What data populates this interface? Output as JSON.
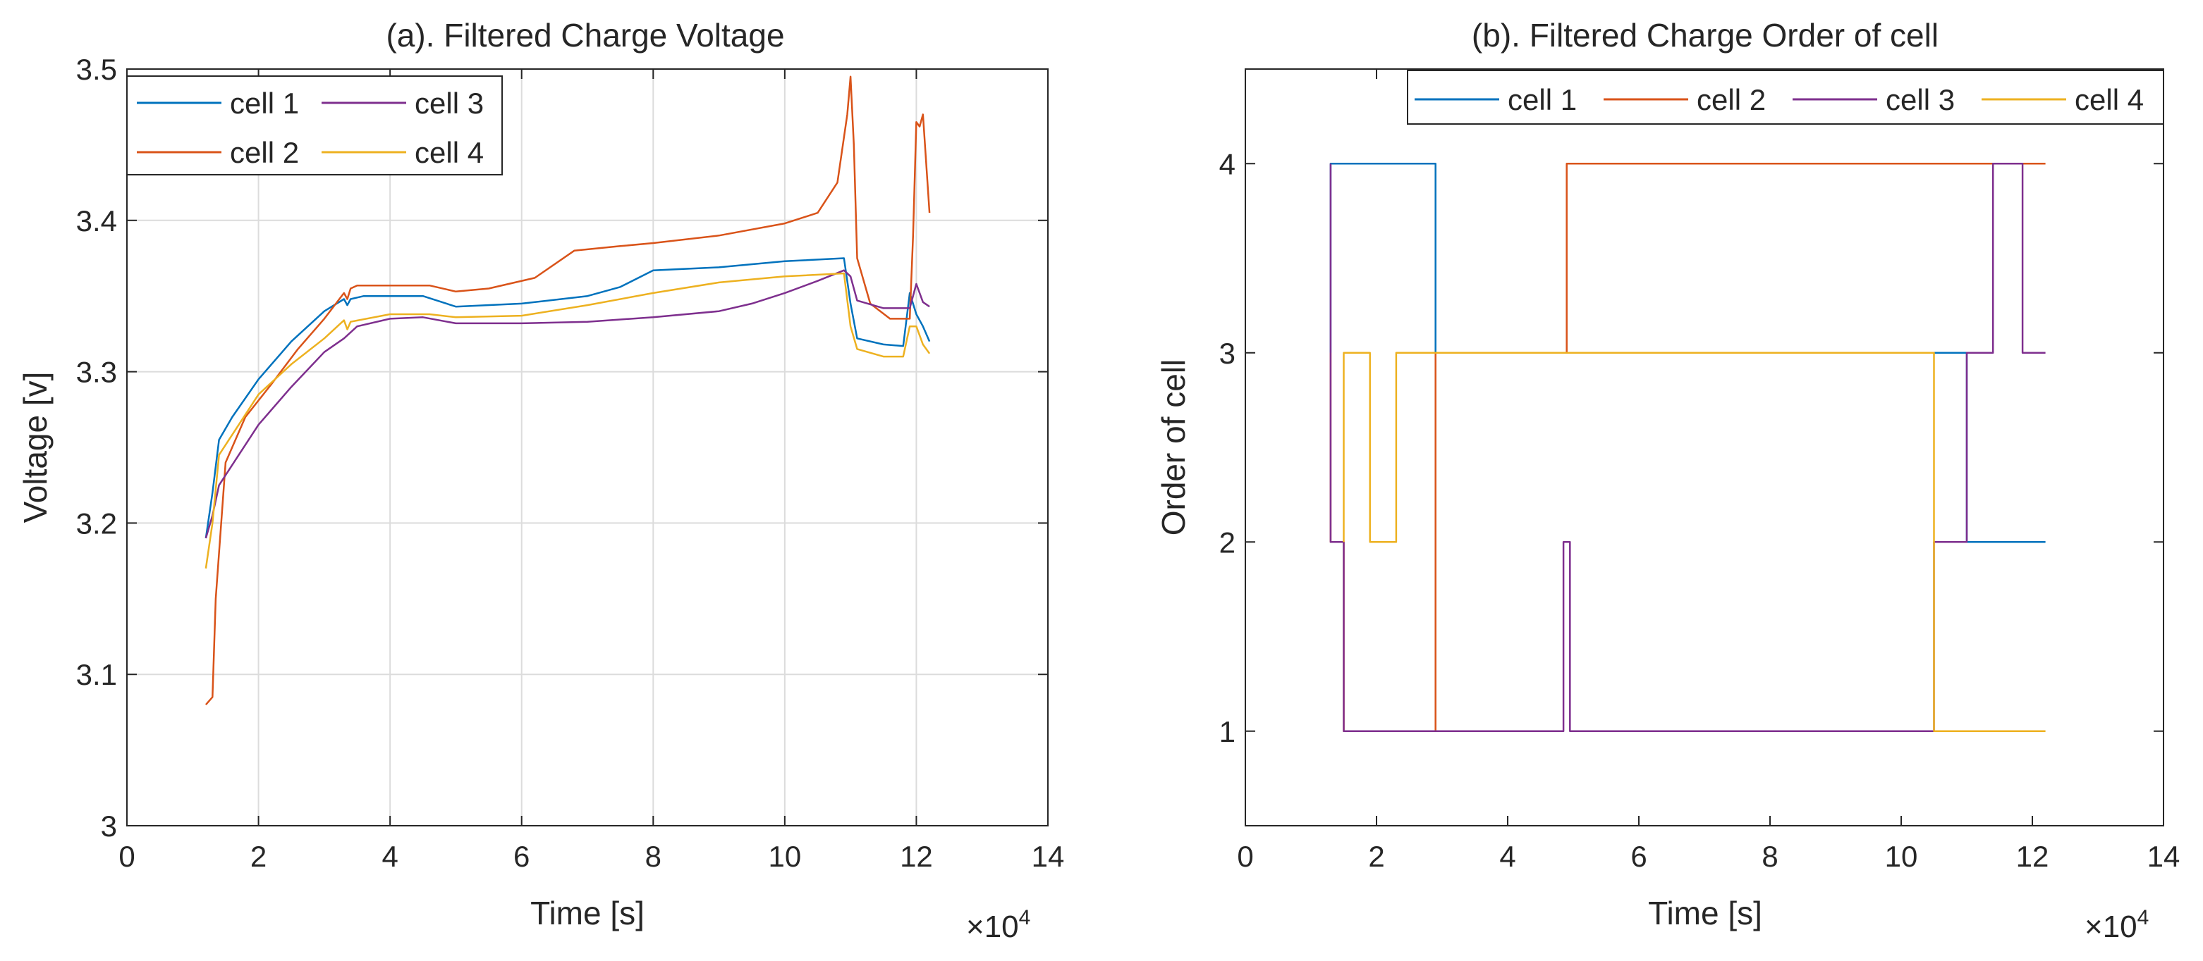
{
  "figure": {
    "exponent_label": "×10",
    "exponent_power": "4"
  },
  "chart_data": [
    {
      "type": "line",
      "title": "(a). Filtered Charge Voltage",
      "xlabel": "Time [s]",
      "ylabel": "Voltage [v]",
      "xlim": [
        0,
        14
      ],
      "ylim": [
        3.0,
        3.5
      ],
      "xticks": [
        0,
        2,
        4,
        6,
        8,
        10,
        12,
        14
      ],
      "yticks": [
        3.0,
        3.1,
        3.2,
        3.3,
        3.4,
        3.5
      ],
      "xtick_labels": [
        "0",
        "2",
        "4",
        "6",
        "8",
        "10",
        "12",
        "14"
      ],
      "ytick_labels": [
        "3",
        "3.1",
        "3.2",
        "3.3",
        "3.4",
        "3.5"
      ],
      "x_multiplier": "×10^4",
      "grid": true,
      "legend_position": "top-left",
      "legend_layout": [
        [
          "cell 1",
          "cell 3"
        ],
        [
          "cell 2",
          "cell 4"
        ]
      ],
      "series": [
        {
          "name": "cell 1",
          "color": "#0072BD",
          "x": [
            1.2,
            1.3,
            1.4,
            1.6,
            2.0,
            2.5,
            3.0,
            3.3,
            3.35,
            3.4,
            3.6,
            4.0,
            4.5,
            5.0,
            6.0,
            7.0,
            7.5,
            8.0,
            9.0,
            10.0,
            10.9,
            11.0,
            11.1,
            11.5,
            11.8,
            11.9,
            12.0,
            12.1,
            12.2
          ],
          "y": [
            3.19,
            3.22,
            3.255,
            3.27,
            3.295,
            3.32,
            3.34,
            3.348,
            3.344,
            3.348,
            3.35,
            3.35,
            3.35,
            3.343,
            3.345,
            3.35,
            3.356,
            3.367,
            3.369,
            3.373,
            3.375,
            3.345,
            3.322,
            3.318,
            3.317,
            3.352,
            3.338,
            3.33,
            3.32
          ]
        },
        {
          "name": "cell 2",
          "color": "#D95319",
          "x": [
            1.2,
            1.3,
            1.35,
            1.5,
            1.8,
            2.2,
            2.6,
            3.0,
            3.3,
            3.35,
            3.4,
            3.5,
            4.0,
            4.6,
            5.0,
            5.5,
            6.2,
            6.8,
            7.5,
            8.0,
            9.0,
            10.0,
            10.5,
            10.8,
            10.95,
            11.0,
            11.05,
            11.1,
            11.3,
            11.6,
            11.9,
            11.95,
            12.0,
            12.05,
            12.1,
            12.2
          ],
          "y": [
            3.08,
            3.085,
            3.15,
            3.24,
            3.27,
            3.292,
            3.315,
            3.335,
            3.352,
            3.348,
            3.355,
            3.357,
            3.357,
            3.357,
            3.353,
            3.355,
            3.362,
            3.38,
            3.383,
            3.385,
            3.39,
            3.398,
            3.405,
            3.425,
            3.47,
            3.495,
            3.45,
            3.375,
            3.345,
            3.335,
            3.335,
            3.39,
            3.465,
            3.462,
            3.47,
            3.405
          ]
        },
        {
          "name": "cell 3",
          "color": "#7E2F8E",
          "x": [
            1.2,
            1.3,
            1.4,
            1.7,
            2.0,
            2.5,
            3.0,
            3.3,
            3.5,
            4.0,
            4.5,
            5.0,
            6.0,
            7.0,
            8.0,
            9.0,
            9.5,
            10.0,
            10.5,
            10.9,
            11.0,
            11.1,
            11.5,
            11.9,
            12.0,
            12.1,
            12.2
          ],
          "y": [
            3.19,
            3.205,
            3.225,
            3.245,
            3.265,
            3.29,
            3.313,
            3.322,
            3.33,
            3.335,
            3.336,
            3.332,
            3.332,
            3.333,
            3.336,
            3.34,
            3.345,
            3.352,
            3.36,
            3.367,
            3.363,
            3.347,
            3.342,
            3.342,
            3.358,
            3.346,
            3.343
          ]
        },
        {
          "name": "cell 4",
          "color": "#EDB120",
          "x": [
            1.2,
            1.3,
            1.4,
            1.7,
            2.0,
            2.5,
            3.0,
            3.3,
            3.35,
            3.4,
            4.0,
            4.6,
            5.0,
            6.0,
            7.0,
            8.0,
            9.0,
            10.0,
            10.9,
            11.0,
            11.1,
            11.5,
            11.8,
            11.9,
            12.0,
            12.1,
            12.2
          ],
          "y": [
            3.17,
            3.2,
            3.245,
            3.265,
            3.285,
            3.305,
            3.322,
            3.334,
            3.328,
            3.333,
            3.338,
            3.338,
            3.336,
            3.337,
            3.344,
            3.352,
            3.359,
            3.363,
            3.365,
            3.33,
            3.315,
            3.31,
            3.31,
            3.33,
            3.33,
            3.318,
            3.312
          ]
        }
      ]
    },
    {
      "type": "line",
      "title": "(b). Filtered Charge Order of cell",
      "xlabel": "Time [s]",
      "ylabel": "Order of cell",
      "xlim": [
        0,
        14
      ],
      "ylim": [
        0.5,
        4.5
      ],
      "xticks": [
        0,
        2,
        4,
        6,
        8,
        10,
        12,
        14
      ],
      "yticks": [
        1,
        2,
        3,
        4
      ],
      "xtick_labels": [
        "0",
        "2",
        "4",
        "6",
        "8",
        "10",
        "12",
        "14"
      ],
      "ytick_labels": [
        "1",
        "2",
        "3",
        "4"
      ],
      "x_multiplier": "×10^4",
      "grid": false,
      "legend_position": "top-right",
      "legend_layout": [
        [
          "cell 1",
          "cell 2",
          "cell 3",
          "cell 4"
        ]
      ],
      "series": [
        {
          "name": "cell 1",
          "color": "#0072BD",
          "x": [
            1.3,
            1.3,
            2.9,
            2.9,
            11.0,
            11.0,
            12.2
          ],
          "y": [
            3,
            4,
            4,
            3,
            3,
            2,
            2
          ]
        },
        {
          "name": "cell 2",
          "color": "#D95319",
          "x": [
            1.3,
            1.3,
            1.5,
            1.5,
            2.9,
            2.9,
            4.9,
            4.9,
            5.0,
            5.0,
            10.5,
            10.5,
            11.4,
            11.4,
            12.2
          ],
          "y": [
            3,
            2,
            2,
            1,
            1,
            3,
            3,
            4,
            4,
            4,
            4,
            4,
            4,
            4,
            4
          ]
        },
        {
          "name": "cell 3",
          "color": "#7E2F8E",
          "x": [
            1.3,
            1.3,
            1.5,
            1.5,
            4.85,
            4.85,
            4.95,
            4.95,
            5.05,
            5.05,
            10.5,
            10.5,
            11.0,
            11.0,
            11.4,
            11.4,
            11.85,
            11.85,
            12.2
          ],
          "y": [
            4,
            2,
            2,
            1,
            1,
            2,
            2,
            1,
            1,
            1,
            1,
            2,
            2,
            3,
            3,
            4,
            4,
            3,
            3
          ]
        },
        {
          "name": "cell 4",
          "color": "#EDB120",
          "x": [
            1.5,
            1.5,
            1.9,
            1.9,
            2.3,
            2.3,
            10.5,
            10.5,
            12.2
          ],
          "y": [
            2,
            3,
            3,
            2,
            2,
            3,
            3,
            1,
            1
          ]
        }
      ]
    }
  ]
}
